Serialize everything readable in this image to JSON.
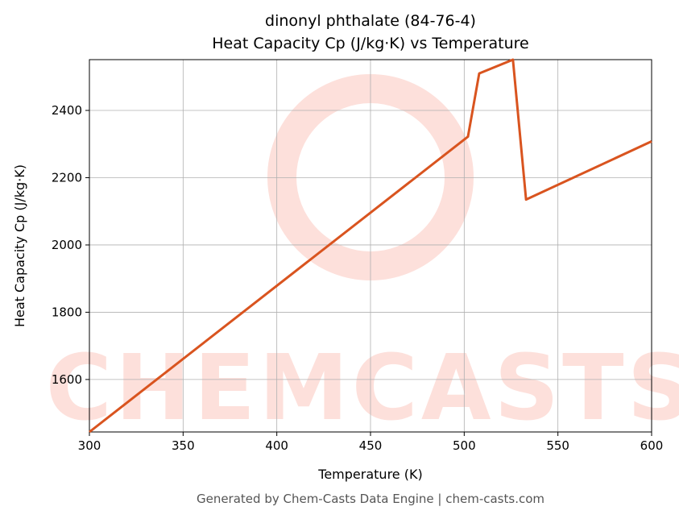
{
  "chart_data": {
    "type": "line",
    "title": "dinonyl phthalate (84-76-4)",
    "subtitle": "Heat Capacity Cp (J/kg·K) vs Temperature",
    "x_label": "Temperature (K)",
    "y_label": "Heat Capacity Cp (J/kg·K)",
    "watermark": "CHEMCASTS",
    "footer": "Generated by Chem-Casts Data Engine | chem-casts.com",
    "x": [
      300,
      502,
      508,
      526,
      533,
      600
    ],
    "series": [
      {
        "name": "Cp",
        "color": "#d9541f",
        "values": [
          1444,
          2322,
          2510,
          2551,
          2135,
          2308
        ]
      }
    ],
    "xlim": [
      300,
      600
    ],
    "xticks": [
      300,
      350,
      400,
      450,
      500,
      550,
      600
    ],
    "ylim": [
      1444,
      2551
    ],
    "yticks": [
      1600,
      1800,
      2000,
      2200,
      2400
    ],
    "grid": true
  }
}
